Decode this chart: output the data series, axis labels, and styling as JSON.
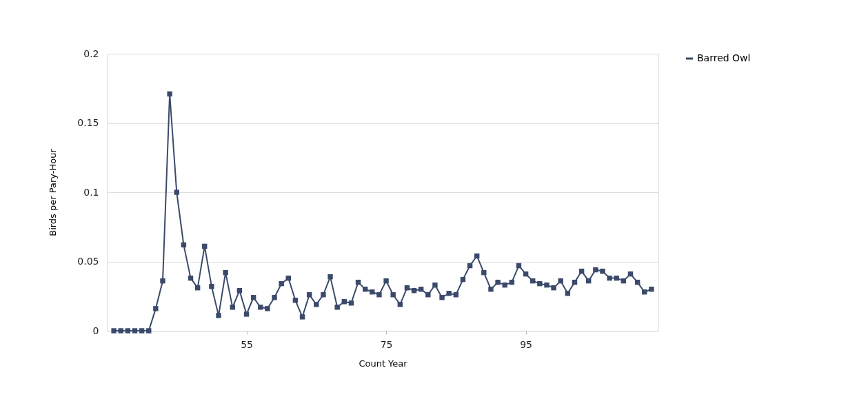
{
  "chart_data": {
    "type": "line",
    "xlabel": "Count Year",
    "ylabel": "Birds per Pary-Hour",
    "x": [
      36,
      37,
      38,
      39,
      40,
      41,
      42,
      43,
      44,
      45,
      46,
      47,
      48,
      49,
      50,
      51,
      52,
      53,
      54,
      55,
      56,
      57,
      58,
      59,
      60,
      61,
      62,
      63,
      64,
      65,
      66,
      67,
      68,
      69,
      70,
      71,
      72,
      73,
      74,
      75,
      76,
      77,
      78,
      79,
      80,
      81,
      82,
      83,
      84,
      85,
      86,
      87,
      88,
      89,
      90,
      91,
      92,
      93,
      94,
      95,
      96,
      97,
      98,
      99,
      100,
      101,
      102,
      103,
      104,
      105,
      106,
      107,
      108,
      109,
      110,
      111,
      112,
      113
    ],
    "series": [
      {
        "name": "Barred Owl",
        "color": "#3b4a6b",
        "values": [
          0,
          0,
          0,
          0,
          0,
          0,
          0.016,
          0.036,
          0.171,
          0.1,
          0.062,
          0.038,
          0.031,
          0.061,
          0.032,
          0.011,
          0.042,
          0.017,
          0.029,
          0.012,
          0.024,
          0.017,
          0.016,
          0.024,
          0.034,
          0.038,
          0.022,
          0.01,
          0.026,
          0.019,
          0.026,
          0.039,
          0.017,
          0.021,
          0.02,
          0.035,
          0.03,
          0.028,
          0.026,
          0.036,
          0.026,
          0.019,
          0.031,
          0.029,
          0.03,
          0.026,
          0.033,
          0.024,
          0.027,
          0.026,
          0.037,
          0.047,
          0.054,
          0.042,
          0.03,
          0.035,
          0.033,
          0.035,
          0.047,
          0.041,
          0.036,
          0.034,
          0.033,
          0.031,
          0.036,
          0.027,
          0.035,
          0.043,
          0.036,
          0.044,
          0.043,
          0.038,
          0.038,
          0.036,
          0.041,
          0.035,
          0.028,
          0.03
        ]
      }
    ],
    "xlim": [
      35,
      114
    ],
    "xticks": [
      55,
      75,
      95
    ],
    "ylim": [
      0,
      0.2
    ],
    "yticks": [
      0,
      0.05,
      0.1,
      0.15,
      0.2
    ],
    "grid": "y",
    "legend": "top right",
    "marker": "square",
    "line_style": "solid"
  }
}
